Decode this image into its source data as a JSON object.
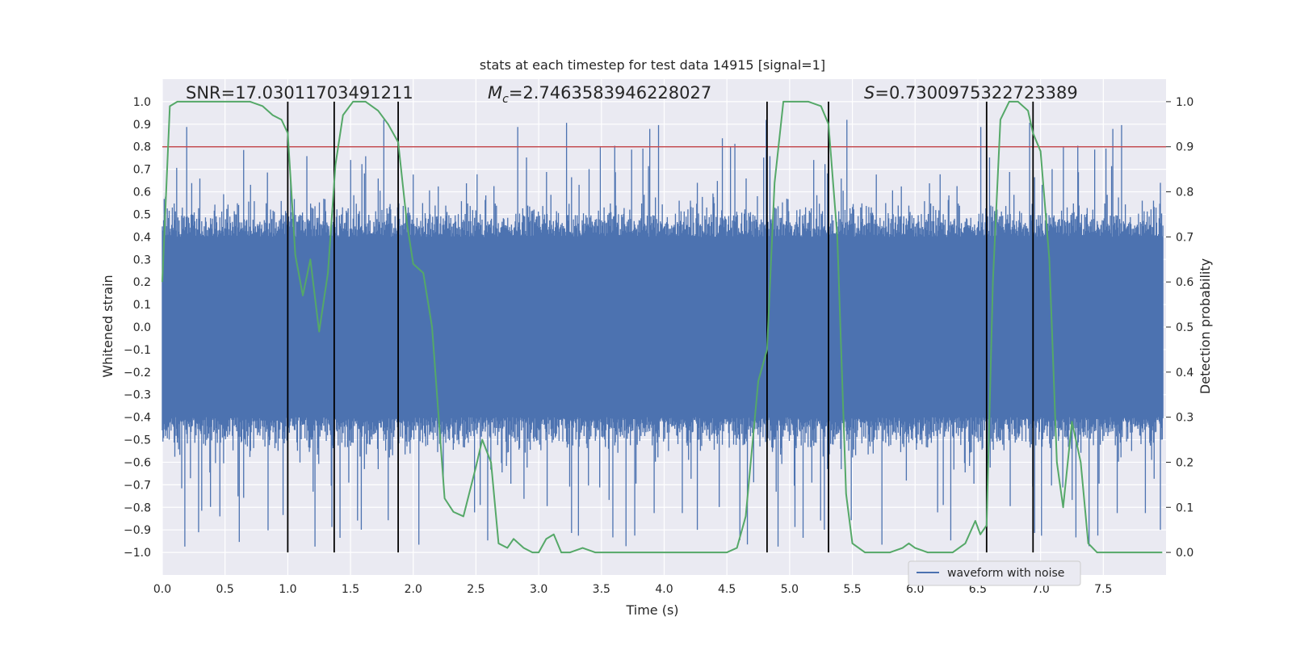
{
  "chart_data": {
    "type": "line",
    "title": "stats at each timestep for test data 14915 [signal=1]",
    "xlabel": "Time (s)",
    "ylabel_left": "Whitened strain",
    "ylabel_right": "Detection probability",
    "xlim": [
      0.0,
      8.0
    ],
    "ylim_left": [
      -1.1,
      1.1
    ],
    "ylim_right": [
      -0.05,
      1.05
    ],
    "xticks": [
      0.0,
      0.5,
      1.0,
      1.5,
      2.0,
      2.5,
      3.0,
      3.5,
      4.0,
      4.5,
      5.0,
      5.5,
      6.0,
      6.5,
      7.0,
      7.5
    ],
    "xtick_labels": [
      "0.0",
      "0.5",
      "1.0",
      "1.5",
      "2.0",
      "2.5",
      "3.0",
      "3.5",
      "4.0",
      "4.5",
      "5.0",
      "5.5",
      "6.0",
      "6.5",
      "7.0",
      "7.5"
    ],
    "yticks_left": [
      1.0,
      0.9,
      0.8,
      0.7,
      0.6,
      0.5,
      0.4,
      0.3,
      0.2,
      0.1,
      0.0,
      -0.1,
      -0.2,
      -0.3,
      -0.4,
      -0.5,
      -0.6,
      -0.7,
      -0.8,
      -0.9,
      -1.0
    ],
    "ytick_labels_left": [
      "1.0",
      "0.9",
      "0.8",
      "0.7",
      "0.6",
      "0.5",
      "0.4",
      "0.3",
      "0.2",
      "0.1",
      "0.0",
      "−0.1",
      "−0.2",
      "−0.3",
      "−0.4",
      "−0.5",
      "−0.6",
      "−0.7",
      "−0.8",
      "−0.9",
      "−1.0"
    ],
    "yticks_right": [
      0.0,
      0.1,
      0.2,
      0.3,
      0.4,
      0.5,
      0.6,
      0.7,
      0.8,
      0.9,
      1.0
    ],
    "ytick_labels_right": [
      "0.0",
      "0.1",
      "0.2",
      "0.3",
      "0.4",
      "0.5",
      "0.6",
      "0.7",
      "0.8",
      "0.9",
      "1.0"
    ],
    "annotations": {
      "snr": "SNR=17.03011703491211",
      "mc_symbol": "M",
      "mc_sub": "c",
      "mc_value": "=2.7463583946228027",
      "s_symbol": "S",
      "s_value": "=0.7300975322723389"
    },
    "threshold": {
      "axis": "right",
      "value": 0.9,
      "color": "#c44e52"
    },
    "vertical_lines": [
      1.0,
      1.37,
      1.88,
      4.82,
      5.31,
      6.57,
      6.94
    ],
    "vertical_lines_range_left": [
      -1.0,
      1.0
    ],
    "waveform": {
      "name": "waveform with noise",
      "color": "#4c72b0",
      "samples": 1600,
      "envelope": {
        "p90_amplitude": 0.4,
        "max_peak": 0.92
      }
    },
    "probability": {
      "name": "Detection probability",
      "color": "#55a868",
      "t": [
        0.0,
        0.06,
        0.12,
        0.25,
        0.5,
        0.7,
        0.8,
        0.88,
        0.95,
        1.0,
        1.06,
        1.12,
        1.18,
        1.25,
        1.32,
        1.38,
        1.44,
        1.52,
        1.62,
        1.72,
        1.8,
        1.88,
        1.95,
        2.0,
        2.08,
        2.15,
        2.25,
        2.32,
        2.4,
        2.5,
        2.55,
        2.62,
        2.68,
        2.75,
        2.8,
        2.88,
        2.95,
        3.0,
        3.06,
        3.12,
        3.18,
        3.25,
        3.35,
        3.45,
        3.6,
        3.8,
        4.0,
        4.3,
        4.5,
        4.58,
        4.65,
        4.75,
        4.82,
        4.88,
        4.95,
        5.05,
        5.15,
        5.25,
        5.31,
        5.38,
        5.45,
        5.5,
        5.6,
        5.8,
        5.9,
        5.95,
        6.0,
        6.1,
        6.3,
        6.4,
        6.48,
        6.52,
        6.57,
        6.62,
        6.68,
        6.75,
        6.82,
        6.9,
        6.94,
        7.0,
        7.07,
        7.13,
        7.18,
        7.25,
        7.32,
        7.38,
        7.45,
        7.6,
        7.8,
        7.97
      ],
      "p": [
        0.6,
        0.99,
        1.0,
        1.0,
        1.0,
        1.0,
        0.99,
        0.97,
        0.96,
        0.93,
        0.66,
        0.57,
        0.65,
        0.49,
        0.62,
        0.86,
        0.97,
        1.0,
        1.0,
        0.98,
        0.95,
        0.91,
        0.73,
        0.64,
        0.62,
        0.5,
        0.12,
        0.09,
        0.08,
        0.19,
        0.25,
        0.2,
        0.02,
        0.01,
        0.03,
        0.01,
        0.0,
        0.0,
        0.03,
        0.04,
        0.0,
        0.0,
        0.01,
        0.0,
        0.0,
        0.0,
        0.0,
        0.0,
        0.0,
        0.01,
        0.08,
        0.38,
        0.45,
        0.82,
        1.0,
        1.0,
        1.0,
        0.99,
        0.95,
        0.7,
        0.13,
        0.02,
        0.0,
        0.0,
        0.01,
        0.02,
        0.01,
        0.0,
        0.0,
        0.02,
        0.07,
        0.04,
        0.06,
        0.6,
        0.96,
        1.0,
        1.0,
        0.98,
        0.93,
        0.89,
        0.65,
        0.2,
        0.1,
        0.29,
        0.2,
        0.02,
        0.0,
        0.0,
        0.0,
        0.0
      ]
    },
    "legend": {
      "label": "waveform with noise",
      "placement": "lower-right"
    }
  }
}
